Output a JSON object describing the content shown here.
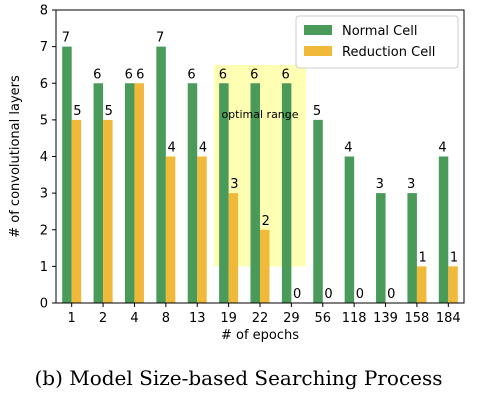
{
  "colors": {
    "normal": "#4a9a5a",
    "reduction": "#f0b93a",
    "highlight": "#ffff99"
  },
  "chart_data": {
    "type": "bar",
    "categories": [
      "1",
      "2",
      "4",
      "8",
      "13",
      "19",
      "22",
      "29",
      "56",
      "118",
      "139",
      "158",
      "184"
    ],
    "series": [
      {
        "name": "Normal Cell",
        "values": [
          7,
          6,
          6,
          7,
          6,
          6,
          6,
          6,
          5,
          4,
          3,
          3,
          4
        ]
      },
      {
        "name": "Reduction Cell",
        "values": [
          5,
          5,
          6,
          4,
          4,
          3,
          2,
          0,
          0,
          0,
          0,
          1,
          1
        ]
      }
    ],
    "xlabel": "# of epochs",
    "ylabel": "# of convolutional layers",
    "ylim": [
      0,
      8
    ],
    "yticks": [
      0,
      1,
      2,
      3,
      4,
      5,
      6,
      7,
      8
    ],
    "legend_position": "top-right",
    "annotation": {
      "text": "optimal range",
      "x_from": "19",
      "x_to": "29",
      "y_from": 1,
      "y_to": 6.5
    }
  },
  "caption": "(b) Model Size-based Searching Process"
}
